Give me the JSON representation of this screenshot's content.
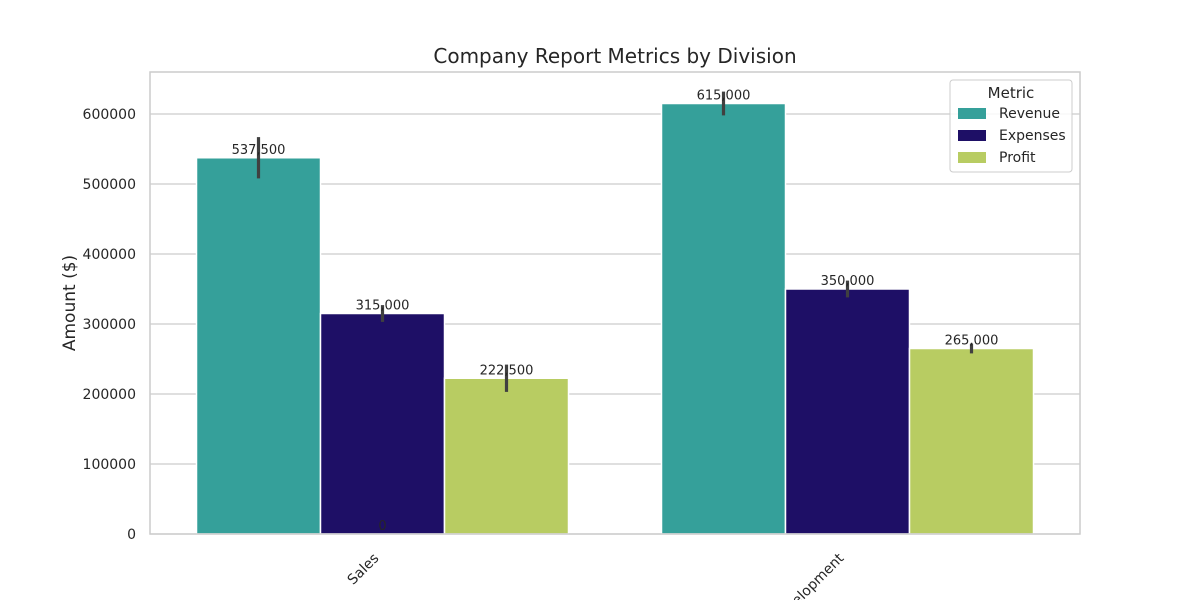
{
  "chart_data": {
    "type": "bar",
    "title": "Company Report Metrics by Division",
    "xlabel": "",
    "ylabel": "Amount ($)",
    "categories": [
      "Sales",
      "Development"
    ],
    "ylim": [
      0,
      660000
    ],
    "yticks": [
      "0",
      "100000",
      "200000",
      "300000",
      "400000",
      "500000",
      "600000"
    ],
    "grid": true,
    "legend": {
      "title": "Metric",
      "placement": "top-right"
    },
    "series": [
      {
        "name": "Revenue",
        "color": "#35a09a",
        "values": [
          537500,
          615000
        ],
        "value_labels": [
          "537,500",
          "615,000"
        ],
        "error_low": [
          508000,
          598000
        ],
        "error_high": [
          567000,
          632000
        ]
      },
      {
        "name": "Expenses",
        "color": "#1e0f66",
        "values": [
          315000,
          350000
        ],
        "value_labels": [
          "315,000",
          "350,000"
        ],
        "error_low": [
          303000,
          338000
        ],
        "error_high": [
          327000,
          362000
        ]
      },
      {
        "name": "Profit",
        "color": "#b8cc62",
        "values": [
          222500,
          265000
        ],
        "value_labels": [
          "222,500",
          "265,000"
        ],
        "error_low": [
          203000,
          258000
        ],
        "error_high": [
          242000,
          272000
        ]
      }
    ],
    "annotations": [
      "0"
    ]
  }
}
